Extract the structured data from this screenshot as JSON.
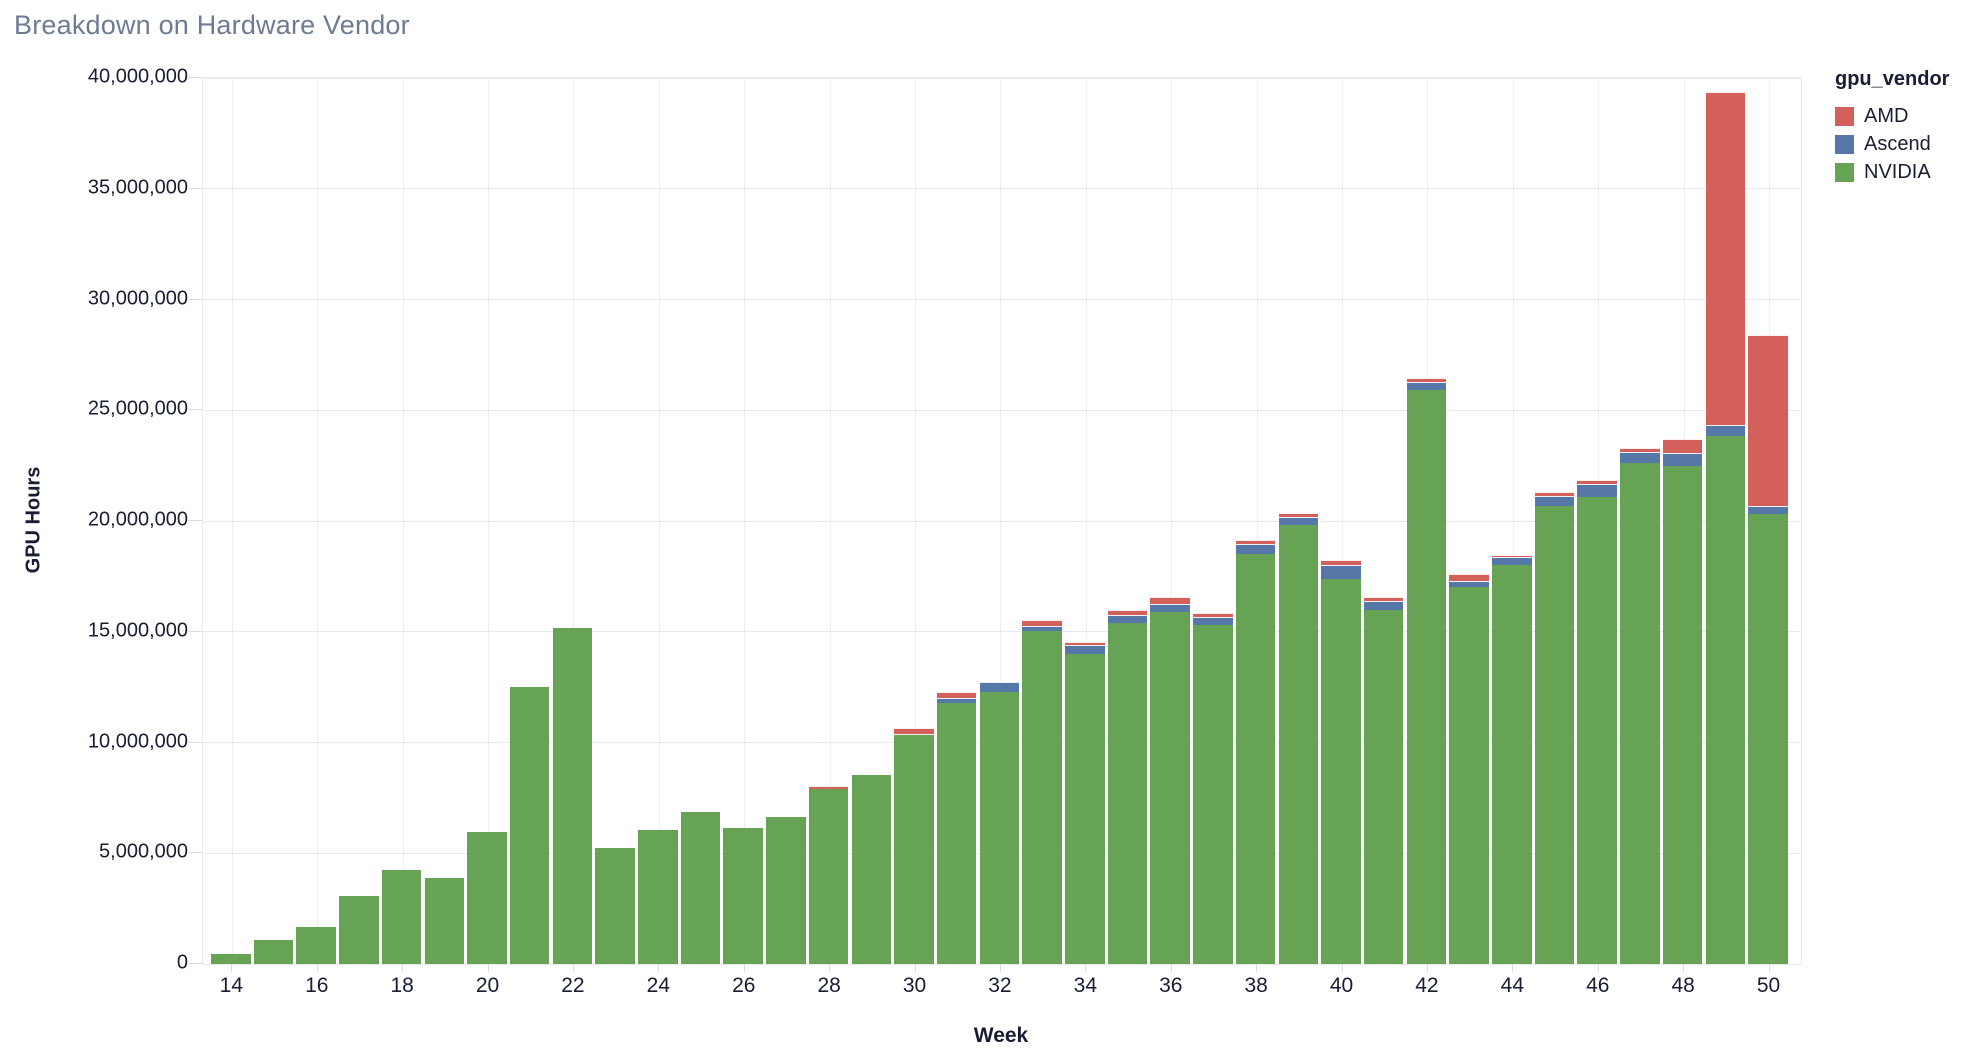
{
  "title": "Breakdown on Hardware Vendor",
  "legend": {
    "title": "gpu_vendor",
    "items": [
      {
        "label": "AMD",
        "color": "#d4605c"
      },
      {
        "label": "Ascend",
        "color": "#5578a8"
      },
      {
        "label": "NVIDIA",
        "color": "#66a355"
      }
    ]
  },
  "colors": {
    "grid": "#e8e9f1",
    "axis_text": "#191d33",
    "title_text": "#6e7b93",
    "amd": "#d4605c",
    "ascend": "#5578a8",
    "nvidia": "#66a355"
  },
  "chart_data": {
    "type": "bar",
    "stacked": true,
    "title": "Breakdown on Hardware Vendor",
    "xlabel": "Week",
    "ylabel": "GPU Hours",
    "legend_title": "gpu_vendor",
    "legend_position": "top-right",
    "grid": true,
    "ylim": [
      0,
      40000000
    ],
    "x": [
      14,
      15,
      16,
      17,
      18,
      19,
      20,
      21,
      22,
      23,
      24,
      25,
      26,
      27,
      28,
      29,
      30,
      31,
      32,
      33,
      34,
      35,
      36,
      37,
      38,
      39,
      40,
      41,
      42,
      43,
      44,
      45,
      46,
      47,
      48,
      49,
      50
    ],
    "x_tick_labels": [
      "14",
      "16",
      "18",
      "20",
      "22",
      "24",
      "26",
      "28",
      "30",
      "32",
      "34",
      "36",
      "38",
      "40",
      "42",
      "44",
      "46",
      "48",
      "50"
    ],
    "y_ticks": {
      "values": [
        0,
        5000000,
        10000000,
        15000000,
        20000000,
        25000000,
        30000000,
        35000000,
        40000000
      ],
      "labels": [
        "0",
        "5,000,000",
        "10,000,000",
        "15,000,000",
        "20,000,000",
        "25,000,000",
        "30,000,000",
        "35,000,000",
        "40,000,000"
      ]
    },
    "series": [
      {
        "name": "NVIDIA",
        "color": "#66a355",
        "values": [
          450000,
          1100000,
          1650000,
          3050000,
          4250000,
          3900000,
          5950000,
          12500000,
          15150000,
          5250000,
          6050000,
          6850000,
          6150000,
          6650000,
          7900000,
          8550000,
          10350000,
          11800000,
          12300000,
          15050000,
          14000000,
          15400000,
          15900000,
          15300000,
          18500000,
          19800000,
          17400000,
          16000000,
          25900000,
          17000000,
          18000000,
          20700000,
          21100000,
          22600000,
          22500000,
          23850000,
          20300000
        ]
      },
      {
        "name": "Ascend",
        "color": "#5578a8",
        "values": [
          0,
          0,
          0,
          0,
          0,
          0,
          0,
          0,
          0,
          0,
          0,
          0,
          0,
          0,
          0,
          0,
          50000,
          200000,
          450000,
          200000,
          400000,
          350000,
          350000,
          350000,
          450000,
          400000,
          600000,
          400000,
          370000,
          300000,
          370000,
          420000,
          550000,
          500000,
          550000,
          500000,
          400000
        ]
      },
      {
        "name": "AMD",
        "color": "#d4605c",
        "values": [
          0,
          0,
          0,
          0,
          0,
          0,
          0,
          0,
          0,
          0,
          0,
          0,
          0,
          0,
          120000,
          0,
          250000,
          300000,
          0,
          300000,
          150000,
          250000,
          300000,
          200000,
          200000,
          180000,
          250000,
          180000,
          200000,
          300000,
          100000,
          200000,
          220000,
          200000,
          650000,
          15000000,
          7700000
        ]
      }
    ]
  }
}
